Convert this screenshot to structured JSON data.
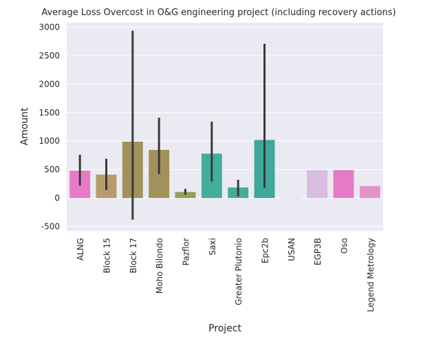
{
  "chart_data": {
    "type": "bar",
    "title": "Average Loss Overcost in O&G engineering project (including recovery actions)",
    "xlabel": "Project",
    "ylabel": "Amount",
    "ylim": [
      -580,
      3080
    ],
    "yticks": [
      -500,
      0,
      500,
      1000,
      1500,
      2000,
      2500,
      3000
    ],
    "grid": true,
    "categories": [
      "ALNG",
      "Block 15",
      "Block 17",
      "Moho Bilondo",
      "Pazflor",
      "Saxi",
      "Greater Plutonio",
      "Epc2b",
      "USAN",
      "EGP3B",
      "Oso",
      "Legend Metrology"
    ],
    "values": [
      480,
      410,
      990,
      845,
      105,
      780,
      185,
      1020,
      0,
      490,
      490,
      210
    ],
    "errors": [
      [
        220,
        760
      ],
      [
        140,
        690
      ],
      [
        -380,
        2940
      ],
      [
        420,
        1410
      ],
      [
        60,
        160
      ],
      [
        290,
        1340
      ],
      [
        30,
        320
      ],
      [
        180,
        2710
      ],
      null,
      null,
      null,
      null
    ],
    "colors": [
      "#e77ac6",
      "#b89b6b",
      "#a2915a",
      "#a2915a",
      "#93a05a",
      "#43ad9c",
      "#46ad95",
      "#3fa89d",
      "#d9c0e0",
      "#d8bde0",
      "#e77ac6",
      "#e393c9"
    ],
    "error_color": "#3a3a3a",
    "plot_bg": "#eaeaf2",
    "grid_color": "#ffffff"
  }
}
